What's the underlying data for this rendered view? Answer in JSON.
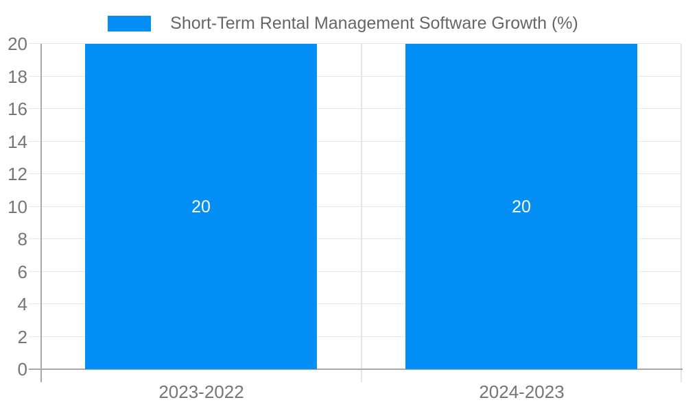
{
  "chart_data": {
    "type": "bar",
    "categories": [
      "2023-2022",
      "2024-2023"
    ],
    "series": [
      {
        "name": "Short-Term Rental Management Software Growth (%)",
        "values": [
          20,
          20
        ]
      }
    ],
    "bar_value_labels": [
      "20",
      "20"
    ],
    "yticks": [
      0,
      2,
      4,
      6,
      8,
      10,
      12,
      14,
      16,
      18,
      20
    ],
    "ylim": [
      0,
      20
    ],
    "xlabel": "",
    "ylabel": "",
    "grid": true,
    "legend_position": "top-center"
  },
  "colors": {
    "bar": "#048ff7",
    "grid": "#e6e6e6",
    "grid_vertical": "#e3e3e3",
    "axis_line": "#a8a8a8",
    "axis_text": "#757575",
    "legend_text": "#666666",
    "bar_label": "#ffffff",
    "background": "#ffffff"
  }
}
